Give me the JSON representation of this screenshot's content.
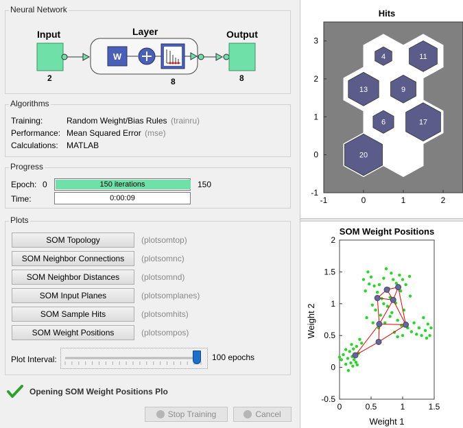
{
  "network": {
    "group_title": "Neural Network",
    "input_label": "Input",
    "input_size": "2",
    "layer_label": "Layer",
    "layer_size": "8",
    "output_label": "Output",
    "output_size": "8",
    "weight_symbol": "W"
  },
  "algorithms": {
    "group_title": "Algorithms",
    "rows": [
      {
        "label": "Training:",
        "value": "Random Weight/Bias Rules",
        "func": "(trainru)"
      },
      {
        "label": "Performance:",
        "value": "Mean Squared Error",
        "func": "(mse)"
      },
      {
        "label": "Calculations:",
        "value": "MATLAB",
        "func": ""
      }
    ]
  },
  "progress": {
    "group_title": "Progress",
    "epoch_label": "Epoch:",
    "epoch_start": "0",
    "epoch_text": "150 iterations",
    "epoch_end": "150",
    "epoch_fraction": 1.0,
    "time_label": "Time:",
    "time_value": "0:00:09"
  },
  "plots": {
    "group_title": "Plots",
    "buttons": [
      {
        "label": "SOM Topology",
        "func": "(plotsomtop)"
      },
      {
        "label": "SOM Neighbor Connections",
        "func": "(plotsomnc)"
      },
      {
        "label": "SOM Neighbor Distances",
        "func": "(plotsomnd)"
      },
      {
        "label": "SOM Input Planes",
        "func": "(plotsomplanes)"
      },
      {
        "label": "SOM Sample Hits",
        "func": "(plotsomhits)"
      },
      {
        "label": "SOM Weight Positions",
        "func": "(plotsompos)"
      }
    ],
    "interval_label": "Plot Interval:",
    "interval_value": "100 epochs",
    "interval_fraction": 1.0
  },
  "status": {
    "message": "Opening SOM Weight Positions Plo",
    "stop_label": "Stop Training",
    "cancel_label": "Cancel"
  },
  "colors": {
    "accent_green": "#6fe0a8",
    "neuron_purple": "#5c5c8a",
    "hits_background": "#808080",
    "data_points": "#2ad42a",
    "weight_links": "#e00000"
  },
  "chart_data": [
    {
      "type": "hexagonal-hits",
      "title": "Hits",
      "xlim": [
        -1,
        2.5
      ],
      "ylim": [
        -1,
        3.5
      ],
      "xticks": [
        "-1",
        "0",
        "1",
        "2"
      ],
      "yticks": [
        "-1",
        "0",
        "1",
        "2",
        "3"
      ],
      "cells": [
        {
          "x": 0,
          "y": 0,
          "hits": 20,
          "label": "20"
        },
        {
          "x": 1,
          "y": 0,
          "hits": 0,
          "label": ""
        },
        {
          "x": 0.5,
          "y": 0.866,
          "hits": 6,
          "label": "6"
        },
        {
          "x": 1.5,
          "y": 0.866,
          "hits": 17,
          "label": "17"
        },
        {
          "x": 0,
          "y": 1.732,
          "hits": 13,
          "label": "13"
        },
        {
          "x": 1,
          "y": 1.732,
          "hits": 9,
          "label": "9"
        },
        {
          "x": 0.5,
          "y": 2.598,
          "hits": 4,
          "label": "4"
        },
        {
          "x": 1.5,
          "y": 2.598,
          "hits": 11,
          "label": "11"
        }
      ],
      "max_hits": 20
    },
    {
      "type": "scatter",
      "title": "SOM Weight Positions",
      "xlabel": "Weight 1",
      "ylabel": "Weight 2",
      "xlim": [
        0,
        1.5
      ],
      "ylim": [
        -0.5,
        2
      ],
      "xticks": [
        "0",
        "0.5",
        "1",
        "1.5"
      ],
      "yticks": [
        "-0.5",
        "0",
        "0.5",
        "1",
        "1.5",
        "2"
      ],
      "data_points": [
        [
          0.0,
          0.16
        ],
        [
          0.03,
          0.12
        ],
        [
          0.06,
          0.2
        ],
        [
          0.1,
          0.05
        ],
        [
          0.1,
          0.28
        ],
        [
          0.13,
          0.14
        ],
        [
          0.14,
          -0.05
        ],
        [
          0.16,
          0.25
        ],
        [
          0.18,
          0.07
        ],
        [
          0.19,
          0.36
        ],
        [
          0.2,
          0.17
        ],
        [
          0.21,
          0.02
        ],
        [
          0.22,
          0.29
        ],
        [
          0.23,
          0.12
        ],
        [
          0.26,
          0.08
        ],
        [
          0.27,
          0.33
        ],
        [
          0.3,
          0.22
        ],
        [
          0.32,
          0.44
        ],
        [
          0.28,
          0.04
        ],
        [
          0.35,
          0.38
        ],
        [
          0.38,
          1.38
        ],
        [
          0.41,
          1.2
        ],
        [
          0.43,
          0.78
        ],
        [
          0.45,
          1.5
        ],
        [
          0.47,
          1.31
        ],
        [
          0.5,
          1.42
        ],
        [
          0.52,
          0.98
        ],
        [
          0.53,
          0.7
        ],
        [
          0.55,
          1.28
        ],
        [
          0.57,
          0.9
        ],
        [
          0.6,
          1.18
        ],
        [
          0.62,
          0.62
        ],
        [
          0.63,
          1.3
        ],
        [
          0.65,
          0.82
        ],
        [
          0.67,
          1.08
        ],
        [
          0.7,
          1.4
        ],
        [
          0.72,
          0.7
        ],
        [
          0.74,
          1.55
        ],
        [
          0.76,
          0.96
        ],
        [
          0.78,
          1.24
        ],
        [
          0.8,
          1.1
        ],
        [
          0.82,
          1.48
        ],
        [
          0.83,
          0.86
        ],
        [
          0.85,
          1.38
        ],
        [
          0.87,
          0.55
        ],
        [
          0.89,
          1.01
        ],
        [
          0.9,
          1.32
        ],
        [
          0.92,
          0.74
        ],
        [
          0.95,
          1.45
        ],
        [
          0.97,
          1.2
        ],
        [
          0.92,
          0.48
        ],
        [
          0.98,
          0.66
        ],
        [
          1.0,
          1.38
        ],
        [
          1.02,
          0.9
        ],
        [
          1.05,
          1.3
        ],
        [
          1.08,
          0.62
        ],
        [
          1.11,
          1.43
        ],
        [
          1.12,
          1.12
        ],
        [
          1.14,
          0.56
        ],
        [
          1.18,
          0.7
        ],
        [
          1.22,
          0.52
        ],
        [
          1.26,
          0.62
        ],
        [
          1.3,
          0.5
        ],
        [
          1.33,
          0.78
        ],
        [
          1.36,
          0.58
        ],
        [
          1.4,
          0.68
        ],
        [
          1.43,
          0.5
        ],
        [
          1.45,
          0.62
        ],
        [
          1.38,
          0.46
        ],
        [
          0.8,
          0.8
        ],
        [
          0.7,
          1.0
        ],
        [
          1.0,
          0.5
        ]
      ],
      "neurons": [
        [
          0.25,
          0.19
        ],
        [
          0.62,
          0.4
        ],
        [
          0.63,
          0.68
        ],
        [
          1.05,
          0.67
        ],
        [
          0.6,
          1.09
        ],
        [
          0.85,
          1.06
        ],
        [
          0.75,
          1.22
        ],
        [
          0.93,
          1.26
        ]
      ],
      "links": [
        [
          0,
          1
        ],
        [
          0,
          2
        ],
        [
          1,
          2
        ],
        [
          1,
          3
        ],
        [
          2,
          3
        ],
        [
          2,
          4
        ],
        [
          2,
          5
        ],
        [
          3,
          5
        ],
        [
          4,
          5
        ],
        [
          4,
          6
        ],
        [
          5,
          6
        ],
        [
          5,
          7
        ],
        [
          6,
          7
        ],
        [
          3,
          7
        ]
      ]
    }
  ]
}
